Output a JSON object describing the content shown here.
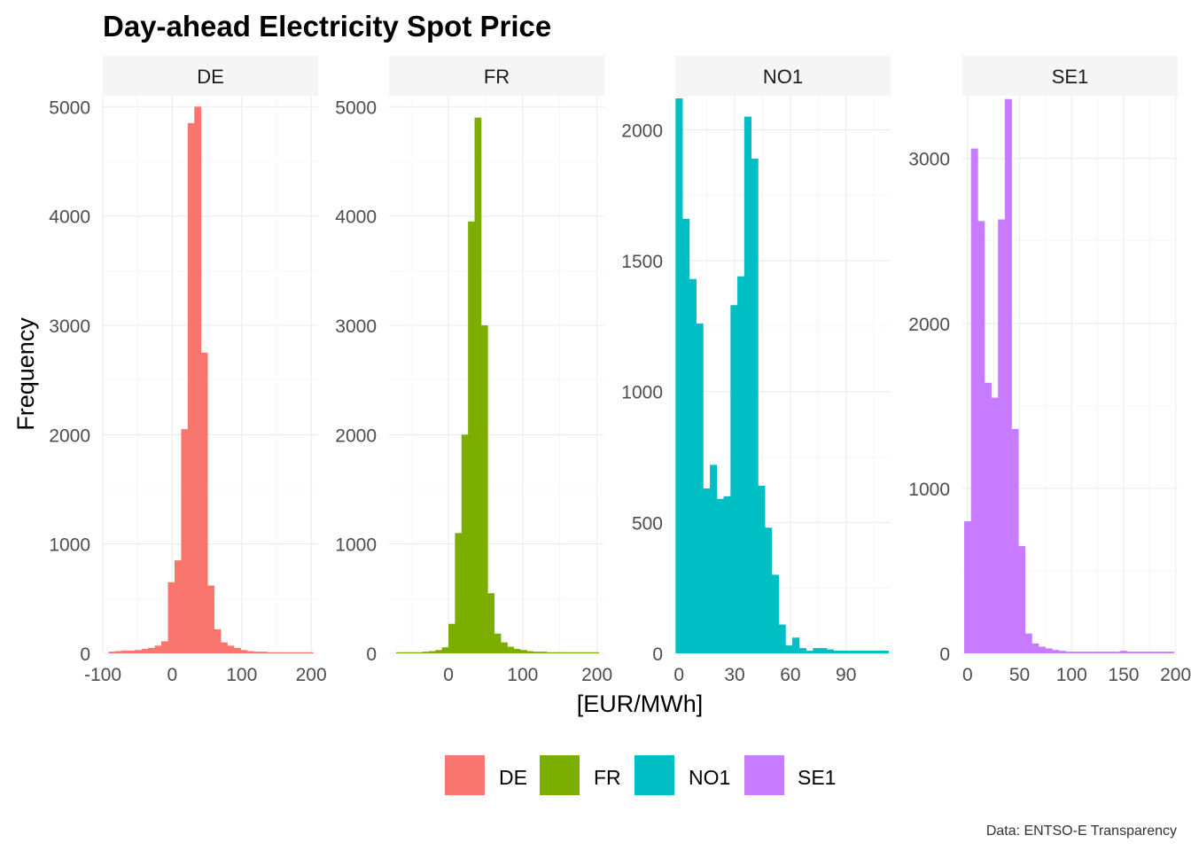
{
  "chart_data": {
    "type": "bar",
    "title": "Day-ahead Electricity Spot Price",
    "xlabel": "[EUR/MWh]",
    "ylabel": "Frequency",
    "caption": "Data: ENTSO-E Transparency",
    "grid": true,
    "legend_position": "bottom",
    "legend": [
      {
        "label": "DE",
        "color": "#F8766D"
      },
      {
        "label": "FR",
        "color": "#7CAE00"
      },
      {
        "label": "NO1",
        "color": "#00BFC4"
      },
      {
        "label": "SE1",
        "color": "#C77CFF"
      }
    ],
    "panels": [
      {
        "name": "DE",
        "color": "#F8766D",
        "xlim": [
          -100,
          210
        ],
        "ylim": [
          0,
          5100
        ],
        "xticks": [
          -100,
          0,
          100,
          200
        ],
        "xtick_labels": [
          "-100",
          "0",
          "100",
          "200"
        ],
        "yticks": [
          0,
          1000,
          2000,
          3000,
          4000,
          5000
        ],
        "ytick_labels": [
          "0",
          "1000",
          "2000",
          "3000",
          "4000",
          "5000"
        ],
        "bin_width": 9.5,
        "bin_centers": [
          -87,
          -77.5,
          -68,
          -58.5,
          -49,
          -39.5,
          -30,
          -20.5,
          -11,
          -1.5,
          8,
          17.5,
          27,
          36.5,
          46,
          55.5,
          65,
          74.5,
          84,
          93.5,
          103,
          112.5,
          122,
          131.5,
          141,
          150.5,
          160,
          169.5,
          179,
          188.5,
          198
        ],
        "counts": [
          15,
          20,
          25,
          25,
          30,
          40,
          50,
          70,
          110,
          650,
          850,
          2050,
          4850,
          5000,
          2750,
          620,
          220,
          100,
          70,
          50,
          30,
          20,
          15,
          15,
          10,
          10,
          10,
          10,
          10,
          10,
          10
        ]
      },
      {
        "name": "FR",
        "color": "#7CAE00",
        "xlim": [
          -80,
          210
        ],
        "ylim": [
          0,
          5100
        ],
        "xticks": [
          0,
          100,
          200
        ],
        "xtick_labels": [
          "0",
          "100",
          "200"
        ],
        "yticks": [
          0,
          1000,
          2000,
          3000,
          4000,
          5000
        ],
        "ytick_labels": [
          "0",
          "1000",
          "2000",
          "3000",
          "4000",
          "5000"
        ],
        "bin_width": 8.8,
        "bin_centers": [
          -66,
          -57.2,
          -48.4,
          -39.6,
          -30.8,
          -22,
          -13.2,
          -4.4,
          4.4,
          13.2,
          22,
          30.8,
          39.6,
          48.4,
          57.2,
          66,
          74.8,
          83.6,
          92.4,
          101.2,
          110,
          118.8,
          127.6,
          136.4,
          145.2,
          154,
          162.8,
          171.6,
          180.4,
          189.2,
          198
        ],
        "counts": [
          10,
          10,
          10,
          10,
          15,
          20,
          30,
          55,
          270,
          1100,
          2000,
          3950,
          4900,
          3000,
          550,
          180,
          100,
          60,
          40,
          30,
          20,
          15,
          15,
          10,
          10,
          10,
          10,
          10,
          10,
          10,
          10
        ]
      },
      {
        "name": "NO1",
        "color": "#00BFC4",
        "xlim": [
          -2,
          114
        ],
        "ylim": [
          0,
          2130
        ],
        "xticks": [
          0,
          30,
          60,
          90
        ],
        "xtick_labels": [
          "0",
          "30",
          "60",
          "90"
        ],
        "yticks": [
          0,
          500,
          1000,
          1500,
          2000
        ],
        "ytick_labels": [
          "0",
          "500",
          "1000",
          "1500",
          "2000"
        ],
        "bin_width": 3.7,
        "bin_centers": [
          0,
          3.7,
          7.4,
          11.1,
          14.8,
          18.5,
          22.2,
          25.9,
          29.6,
          33.3,
          37,
          40.7,
          44.4,
          48.1,
          51.8,
          55.5,
          59.2,
          62.9,
          66.6,
          70.3,
          74,
          77.7,
          81.4,
          85.1,
          88.8,
          92.5,
          96.2,
          99.9,
          103.6,
          107.3,
          111
        ],
        "counts": [
          2120,
          1660,
          1430,
          1260,
          630,
          720,
          590,
          600,
          1330,
          1440,
          2050,
          1890,
          640,
          480,
          300,
          110,
          30,
          60,
          20,
          10,
          20,
          20,
          15,
          10,
          10,
          10,
          10,
          10,
          10,
          10,
          10
        ]
      },
      {
        "name": "SE1",
        "color": "#C77CFF",
        "xlim": [
          -5,
          202
        ],
        "ylim": [
          0,
          3380
        ],
        "xticks": [
          0,
          50,
          100,
          150,
          200
        ],
        "xtick_labels": [
          "0",
          "50",
          "100",
          "150",
          "200"
        ],
        "yticks": [
          0,
          1000,
          2000,
          3000
        ],
        "ytick_labels": [
          "0",
          "1000",
          "2000",
          "3000"
        ],
        "bin_width": 6.5,
        "bin_centers": [
          0,
          6.5,
          13,
          19.5,
          26,
          32.5,
          39,
          45.5,
          52,
          58.5,
          65,
          71.5,
          78,
          84.5,
          91,
          97.5,
          104,
          110.5,
          117,
          123.5,
          130,
          136.5,
          143,
          149.5,
          156,
          162.5,
          169,
          175.5,
          182,
          188.5,
          195
        ],
        "counts": [
          800,
          3060,
          2620,
          1640,
          1550,
          2630,
          3360,
          1360,
          650,
          120,
          60,
          40,
          30,
          20,
          15,
          10,
          10,
          10,
          10,
          10,
          10,
          10,
          10,
          15,
          10,
          10,
          10,
          10,
          10,
          10,
          10
        ]
      }
    ]
  }
}
